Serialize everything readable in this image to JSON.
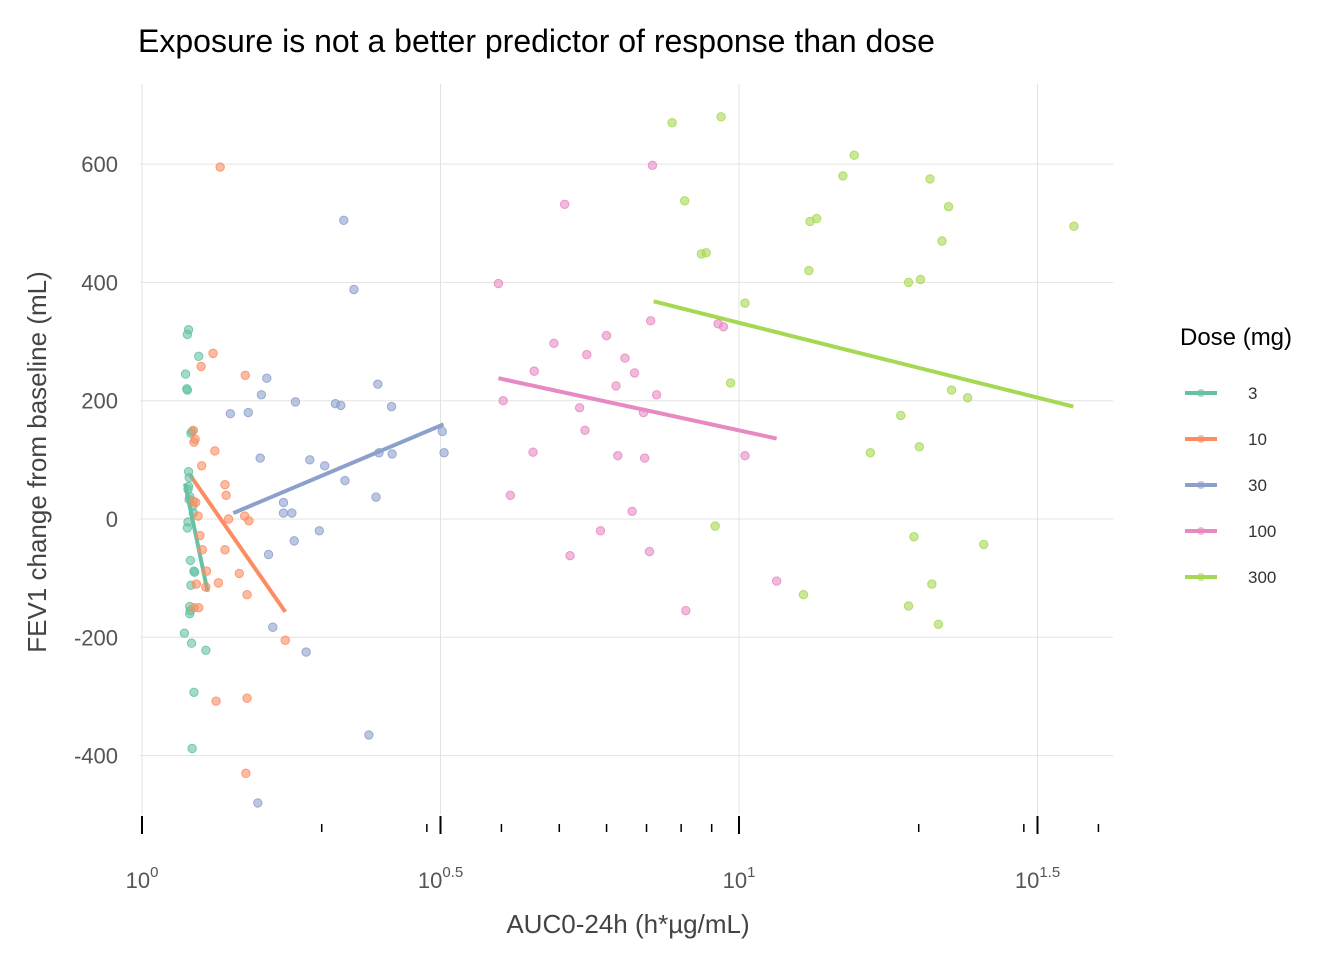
{
  "chart_data": {
    "type": "scatter",
    "title": "Exposure is not a better predictor of response than dose",
    "xlabel": "AUC0-24h (h*µg/mL)",
    "ylabel": "FEV1 change from baseline (mL)",
    "x_scale": "log10",
    "xlim": [
      0.0,
      1.633
    ],
    "ylim": [
      -500,
      730
    ],
    "x_ticks": [
      {
        "base": "10",
        "exp": "0"
      },
      {
        "base": "10",
        "exp": "0.5"
      },
      {
        "base": "10",
        "exp": "1"
      },
      {
        "base": "10",
        "exp": "1.5"
      }
    ],
    "y_ticks": [
      -400,
      -200,
      0,
      200,
      400,
      600
    ],
    "grid": true,
    "legend": {
      "title": "Dose (mg)",
      "position": "right"
    },
    "series": [
      {
        "name": "3",
        "color": "#66c2a5",
        "points": [
          [
            0.071,
            -193
          ],
          [
            0.073,
            245
          ],
          [
            0.075,
            220
          ],
          [
            0.076,
            218
          ],
          [
            0.076,
            312
          ],
          [
            0.078,
            320
          ],
          [
            0.077,
            -5
          ],
          [
            0.076,
            -15
          ],
          [
            0.078,
            55
          ],
          [
            0.077,
            50
          ],
          [
            0.078,
            80
          ],
          [
            0.079,
            70
          ],
          [
            0.08,
            38
          ],
          [
            0.079,
            33
          ],
          [
            0.08,
            -148
          ],
          [
            0.08,
            -160
          ],
          [
            0.081,
            -155
          ],
          [
            0.081,
            -70
          ],
          [
            0.082,
            -112
          ],
          [
            0.083,
            -210
          ],
          [
            0.082,
            145
          ],
          [
            0.084,
            148
          ],
          [
            0.085,
            22
          ],
          [
            0.086,
            10
          ],
          [
            0.087,
            -88
          ],
          [
            0.088,
            -90
          ],
          [
            0.084,
            -388
          ],
          [
            0.087,
            -293
          ],
          [
            0.095,
            275
          ],
          [
            0.107,
            -222
          ]
        ],
        "fit": [
          [
            0.072,
            60
          ],
          [
            0.11,
            -123
          ]
        ]
      },
      {
        "name": "10",
        "color": "#fc8d62",
        "points": [
          [
            0.131,
            595
          ],
          [
            0.119,
            280
          ],
          [
            0.099,
            258
          ],
          [
            0.087,
            130
          ],
          [
            0.089,
            135
          ],
          [
            0.086,
            150
          ],
          [
            0.122,
            115
          ],
          [
            0.1,
            90
          ],
          [
            0.086,
            30
          ],
          [
            0.09,
            28
          ],
          [
            0.094,
            5
          ],
          [
            0.097,
            -28
          ],
          [
            0.101,
            -52
          ],
          [
            0.108,
            -88
          ],
          [
            0.091,
            -110
          ],
          [
            0.087,
            -150
          ],
          [
            0.095,
            -150
          ],
          [
            0.107,
            -115
          ],
          [
            0.128,
            -108
          ],
          [
            0.139,
            58
          ],
          [
            0.141,
            40
          ],
          [
            0.145,
            0
          ],
          [
            0.139,
            -52
          ],
          [
            0.173,
            243
          ],
          [
            0.163,
            -92
          ],
          [
            0.172,
            5
          ],
          [
            0.179,
            -3
          ],
          [
            0.176,
            -128
          ],
          [
            0.176,
            -303
          ],
          [
            0.124,
            -308
          ],
          [
            0.174,
            -430
          ],
          [
            0.24,
            -205
          ]
        ],
        "fit": [
          [
            0.08,
            75
          ],
          [
            0.24,
            -157
          ]
        ]
      },
      {
        "name": "30",
        "color": "#8da0cb",
        "points": [
          [
            0.338,
            505
          ],
          [
            0.355,
            388
          ],
          [
            0.148,
            178
          ],
          [
            0.178,
            180
          ],
          [
            0.2,
            210
          ],
          [
            0.209,
            238
          ],
          [
            0.257,
            198
          ],
          [
            0.198,
            103
          ],
          [
            0.237,
            28
          ],
          [
            0.237,
            10
          ],
          [
            0.251,
            10
          ],
          [
            0.281,
            100
          ],
          [
            0.306,
            90
          ],
          [
            0.297,
            -20
          ],
          [
            0.255,
            -37
          ],
          [
            0.212,
            -60
          ],
          [
            0.219,
            -183
          ],
          [
            0.275,
            -225
          ],
          [
            0.194,
            -480
          ],
          [
            0.324,
            195
          ],
          [
            0.333,
            192
          ],
          [
            0.34,
            65
          ],
          [
            0.395,
            228
          ],
          [
            0.418,
            190
          ],
          [
            0.397,
            112
          ],
          [
            0.419,
            110
          ],
          [
            0.392,
            37
          ],
          [
            0.38,
            -365
          ],
          [
            0.503,
            148
          ],
          [
            0.506,
            112
          ]
        ],
        "fit": [
          [
            0.153,
            10
          ],
          [
            0.505,
            160
          ]
        ]
      },
      {
        "name": "100",
        "color": "#e78ac3",
        "points": [
          [
            0.597,
            398
          ],
          [
            0.605,
            200
          ],
          [
            0.617,
            40
          ],
          [
            0.657,
            250
          ],
          [
            0.655,
            113
          ],
          [
            0.69,
            297
          ],
          [
            0.708,
            532
          ],
          [
            0.717,
            -62
          ],
          [
            0.733,
            188
          ],
          [
            0.742,
            150
          ],
          [
            0.745,
            278
          ],
          [
            0.768,
            -20
          ],
          [
            0.778,
            310
          ],
          [
            0.794,
            225
          ],
          [
            0.797,
            107
          ],
          [
            0.809,
            272
          ],
          [
            0.821,
            13
          ],
          [
            0.825,
            247
          ],
          [
            0.84,
            180
          ],
          [
            0.842,
            103
          ],
          [
            0.85,
            -55
          ],
          [
            0.852,
            335
          ],
          [
            0.855,
            598
          ],
          [
            0.862,
            210
          ],
          [
            0.911,
            -155
          ],
          [
            0.965,
            330
          ],
          [
            0.974,
            325
          ],
          [
            1.01,
            107
          ],
          [
            1.063,
            -105
          ]
        ],
        "fit": [
          [
            0.597,
            238
          ],
          [
            1.063,
            136
          ]
        ]
      },
      {
        "name": "300",
        "color": "#a6d854",
        "points": [
          [
            0.888,
            670
          ],
          [
            0.909,
            538
          ],
          [
            0.937,
            448
          ],
          [
            0.945,
            450
          ],
          [
            0.96,
            -12
          ],
          [
            0.97,
            680
          ],
          [
            0.986,
            230
          ],
          [
            1.01,
            365
          ],
          [
            1.108,
            -128
          ],
          [
            1.117,
            420
          ],
          [
            1.119,
            503
          ],
          [
            1.13,
            508
          ],
          [
            1.174,
            580
          ],
          [
            1.193,
            615
          ],
          [
            1.22,
            112
          ],
          [
            1.271,
            175
          ],
          [
            1.284,
            -147
          ],
          [
            1.284,
            400
          ],
          [
            1.293,
            -30
          ],
          [
            1.302,
            122
          ],
          [
            1.304,
            405
          ],
          [
            1.32,
            575
          ],
          [
            1.323,
            -110
          ],
          [
            1.334,
            -178
          ],
          [
            1.34,
            470
          ],
          [
            1.351,
            528
          ],
          [
            1.356,
            218
          ],
          [
            1.383,
            205
          ],
          [
            1.41,
            -43
          ],
          [
            1.561,
            495
          ]
        ],
        "fit": [
          [
            0.857,
            368
          ],
          [
            1.56,
            190
          ]
        ]
      }
    ]
  }
}
